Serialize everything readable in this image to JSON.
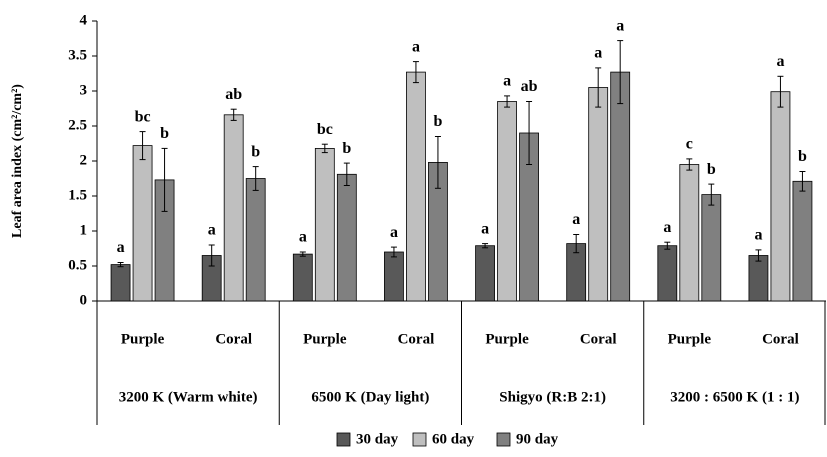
{
  "chart_data": {
    "type": "bar",
    "y_label": "Leaf area index (cm²/cm²)",
    "categories": [
      "Purple",
      "Coral",
      "Purple",
      "Coral",
      "Purple",
      "Coral",
      "Purple",
      "Coral"
    ],
    "groups": [
      "3200 K (Warm white)",
      "6500 K (Day light)",
      "Shigyo (R:B 2:1)",
      "3200 : 6500 K (1 : 1)"
    ],
    "series": [
      {
        "name": "30 day",
        "color": "#595959",
        "values": [
          0.52,
          0.65,
          0.67,
          0.7,
          0.79,
          0.82,
          0.79,
          0.65
        ],
        "errors": [
          0.03,
          0.15,
          0.03,
          0.07,
          0.03,
          0.13,
          0.05,
          0.08
        ],
        "letters": [
          "a",
          "a",
          "a",
          "a",
          "a",
          "a",
          "a",
          "a"
        ]
      },
      {
        "name": "60 day",
        "color": "#bfbfbf",
        "values": [
          2.22,
          2.66,
          2.18,
          3.27,
          2.85,
          3.05,
          1.95,
          2.99
        ],
        "errors": [
          0.2,
          0.08,
          0.06,
          0.15,
          0.08,
          0.28,
          0.08,
          0.22
        ],
        "letters": [
          "bc",
          "ab",
          "bc",
          "a",
          "a",
          "a",
          "c",
          "a"
        ]
      },
      {
        "name": "90 day",
        "color": "#808080",
        "values": [
          1.73,
          1.75,
          1.81,
          1.98,
          2.4,
          3.27,
          1.52,
          1.71
        ],
        "errors": [
          0.45,
          0.17,
          0.16,
          0.37,
          0.45,
          0.45,
          0.15,
          0.14
        ],
        "letters": [
          "b",
          "b",
          "b",
          "b",
          "ab",
          "a",
          "b",
          "b"
        ]
      }
    ],
    "ylim": [
      0,
      4
    ],
    "yticks": [
      0,
      0.5,
      1,
      1.5,
      2,
      2.5,
      3,
      3.5,
      4
    ],
    "legend": "bottom"
  }
}
